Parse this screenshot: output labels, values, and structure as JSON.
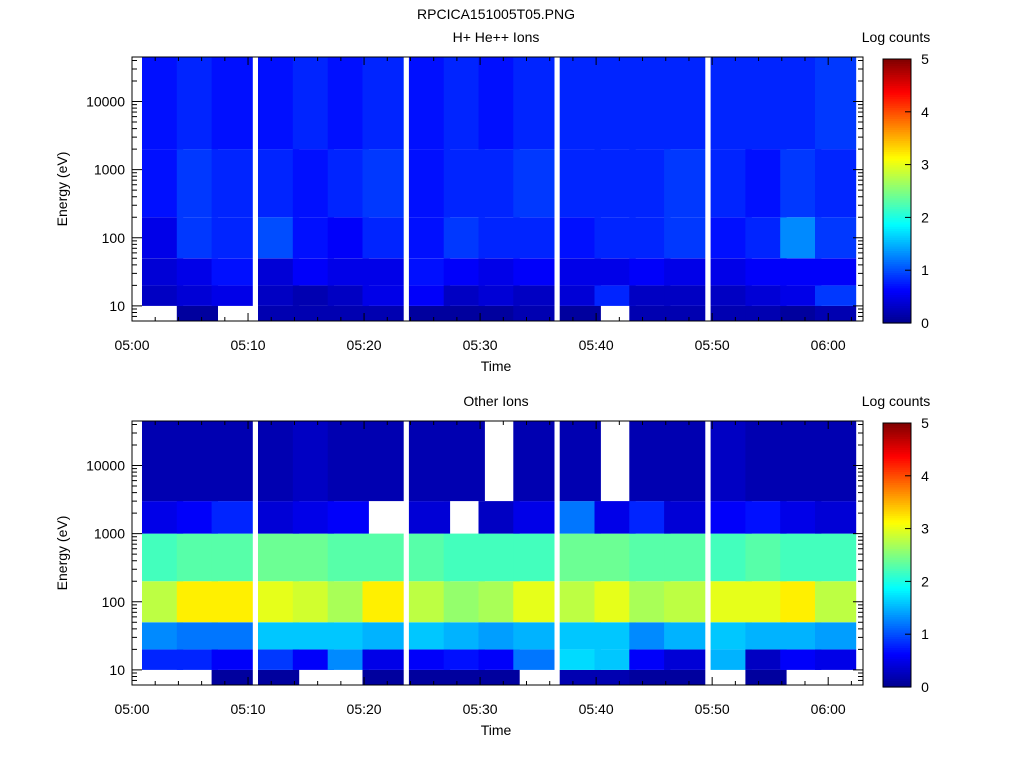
{
  "figure_title": "RPCICA151005T05.PNG",
  "colormap": [
    "#00008c",
    "#0000ff",
    "#0080ff",
    "#00ffff",
    "#80ff80",
    "#ffff00",
    "#ff8000",
    "#ff0000",
    "#800000"
  ],
  "chart_data": [
    {
      "type": "heatmap",
      "title": "H+ He++ Ions",
      "xlabel": "Time",
      "ylabel": "Energy (eV)",
      "yscale": "log",
      "ylim": [
        6,
        45000
      ],
      "xlim": [
        "05:00",
        "06:03"
      ],
      "xticks": [
        "05:00",
        "05:10",
        "05:20",
        "05:30",
        "05:40",
        "05:50",
        "06:00"
      ],
      "yticks": [
        10,
        100,
        1000,
        10000
      ],
      "ytick_labels": [
        "10",
        "100",
        "1000",
        "10000"
      ],
      "colorbar": {
        "label": "Log counts",
        "min": 0,
        "max": 5,
        "ticks": [
          "0",
          "1",
          "2",
          "3",
          "4",
          "5"
        ]
      },
      "time_columns": [
        "05:00",
        "05:03",
        "05:06",
        "05:10",
        "05:13",
        "05:16",
        "05:19",
        "05:23",
        "05:26",
        "05:29",
        "05:32",
        "05:36",
        "05:39",
        "05:42",
        "05:45",
        "05:49",
        "05:52",
        "05:55",
        "05:58"
      ],
      "energy_bands": [
        {
          "low": 6,
          "high": 10,
          "values": [
            null,
            0.1,
            null,
            0.2,
            0.2,
            0.2,
            0.2,
            0.1,
            0.1,
            0.1,
            0.2,
            0.1,
            null,
            0.2,
            0.2,
            0.2,
            0.2,
            0.1,
            0.2
          ]
        },
        {
          "low": 10,
          "high": 20,
          "values": [
            0.3,
            0.4,
            0.5,
            0.3,
            0.2,
            0.3,
            0.5,
            0.6,
            0.3,
            0.4,
            0.3,
            0.4,
            0.8,
            0.3,
            0.3,
            0.3,
            0.4,
            0.5,
            0.9
          ]
        },
        {
          "low": 20,
          "high": 50,
          "values": [
            0.4,
            0.5,
            0.7,
            0.4,
            0.6,
            0.5,
            0.5,
            0.7,
            0.6,
            0.5,
            0.6,
            0.5,
            0.5,
            0.6,
            0.5,
            0.5,
            0.6,
            0.6,
            0.6
          ]
        },
        {
          "low": 50,
          "high": 200,
          "values": [
            0.5,
            0.9,
            0.8,
            1.0,
            0.7,
            0.6,
            0.8,
            0.7,
            0.9,
            0.8,
            0.8,
            0.7,
            0.8,
            0.8,
            0.9,
            0.7,
            0.8,
            1.3,
            0.9
          ]
        },
        {
          "low": 200,
          "high": 2000,
          "values": [
            0.7,
            0.9,
            0.8,
            0.8,
            0.7,
            0.8,
            0.9,
            0.7,
            0.8,
            0.8,
            0.9,
            0.8,
            0.8,
            0.8,
            0.9,
            0.8,
            0.7,
            0.9,
            0.8
          ]
        },
        {
          "low": 2000,
          "high": 45000,
          "values": [
            0.7,
            0.8,
            0.7,
            0.7,
            0.8,
            0.7,
            0.8,
            0.7,
            0.8,
            0.7,
            0.8,
            0.8,
            0.8,
            0.8,
            0.8,
            0.8,
            0.8,
            0.8,
            0.9
          ]
        }
      ]
    },
    {
      "type": "heatmap",
      "title": "Other Ions",
      "xlabel": "Time",
      "ylabel": "Energy (eV)",
      "yscale": "log",
      "ylim": [
        6,
        45000
      ],
      "xlim": [
        "05:00",
        "06:03"
      ],
      "xticks": [
        "05:00",
        "05:10",
        "05:20",
        "05:30",
        "05:40",
        "05:50",
        "06:00"
      ],
      "yticks": [
        10,
        100,
        1000,
        10000
      ],
      "ytick_labels": [
        "10",
        "100",
        "1000",
        "10000"
      ],
      "colorbar": {
        "label": "Log counts",
        "min": 0,
        "max": 5,
        "ticks": [
          "0",
          "1",
          "2",
          "3",
          "4",
          "5"
        ]
      },
      "time_columns": [
        "05:00",
        "05:03",
        "05:06",
        "05:10",
        "05:13",
        "05:16",
        "05:19",
        "05:23",
        "05:26",
        "05:29",
        "05:32",
        "05:36",
        "05:39",
        "05:42",
        "05:45",
        "05:49",
        "05:52",
        "05:55",
        "05:58"
      ],
      "energy_bands": [
        {
          "low": 6,
          "high": 10,
          "values": [
            null,
            null,
            0.1,
            0.1,
            null,
            null,
            0.1,
            0.1,
            0.1,
            0.1,
            null,
            0.2,
            0.2,
            0.1,
            0.1,
            null,
            0.1,
            null,
            null
          ]
        },
        {
          "low": 10,
          "high": 20,
          "values": [
            0.8,
            0.8,
            0.6,
            0.9,
            0.6,
            1.3,
            0.5,
            0.6,
            0.7,
            0.6,
            1.2,
            1.7,
            1.6,
            0.6,
            0.4,
            1.5,
            0.3,
            0.6,
            0.5
          ]
        },
        {
          "low": 20,
          "high": 50,
          "values": [
            1.3,
            1.2,
            1.2,
            1.6,
            1.6,
            1.6,
            1.5,
            1.6,
            1.5,
            1.4,
            1.5,
            1.6,
            1.6,
            1.3,
            1.5,
            1.6,
            1.5,
            1.5,
            1.4
          ]
        },
        {
          "low": 50,
          "high": 200,
          "values": [
            2.8,
            3.2,
            3.2,
            3.0,
            2.9,
            2.7,
            3.2,
            2.8,
            2.6,
            2.7,
            3.0,
            2.8,
            3.0,
            2.7,
            2.8,
            3.0,
            3.0,
            3.2,
            2.8
          ]
        },
        {
          "low": 200,
          "high": 1000,
          "values": [
            2.2,
            2.3,
            2.3,
            2.4,
            2.4,
            2.3,
            2.3,
            2.3,
            2.2,
            2.2,
            2.2,
            2.4,
            2.4,
            2.3,
            2.3,
            2.2,
            2.3,
            2.2,
            2.2
          ]
        },
        {
          "low": 1000,
          "high": 3000,
          "values": [
            0.5,
            0.6,
            0.8,
            0.4,
            0.5,
            0.6,
            null,
            0.4,
            null,
            0.3,
            0.5,
            1.2,
            0.5,
            0.8,
            0.4,
            0.6,
            0.7,
            0.5,
            0.4
          ]
        },
        {
          "low": 3000,
          "high": 45000,
          "values": [
            0.2,
            0.2,
            0.2,
            0.2,
            0.3,
            0.2,
            0.2,
            0.2,
            0.2,
            null,
            0.2,
            0.2,
            null,
            0.2,
            0.2,
            0.3,
            0.2,
            0.2,
            0.2
          ]
        }
      ]
    }
  ]
}
